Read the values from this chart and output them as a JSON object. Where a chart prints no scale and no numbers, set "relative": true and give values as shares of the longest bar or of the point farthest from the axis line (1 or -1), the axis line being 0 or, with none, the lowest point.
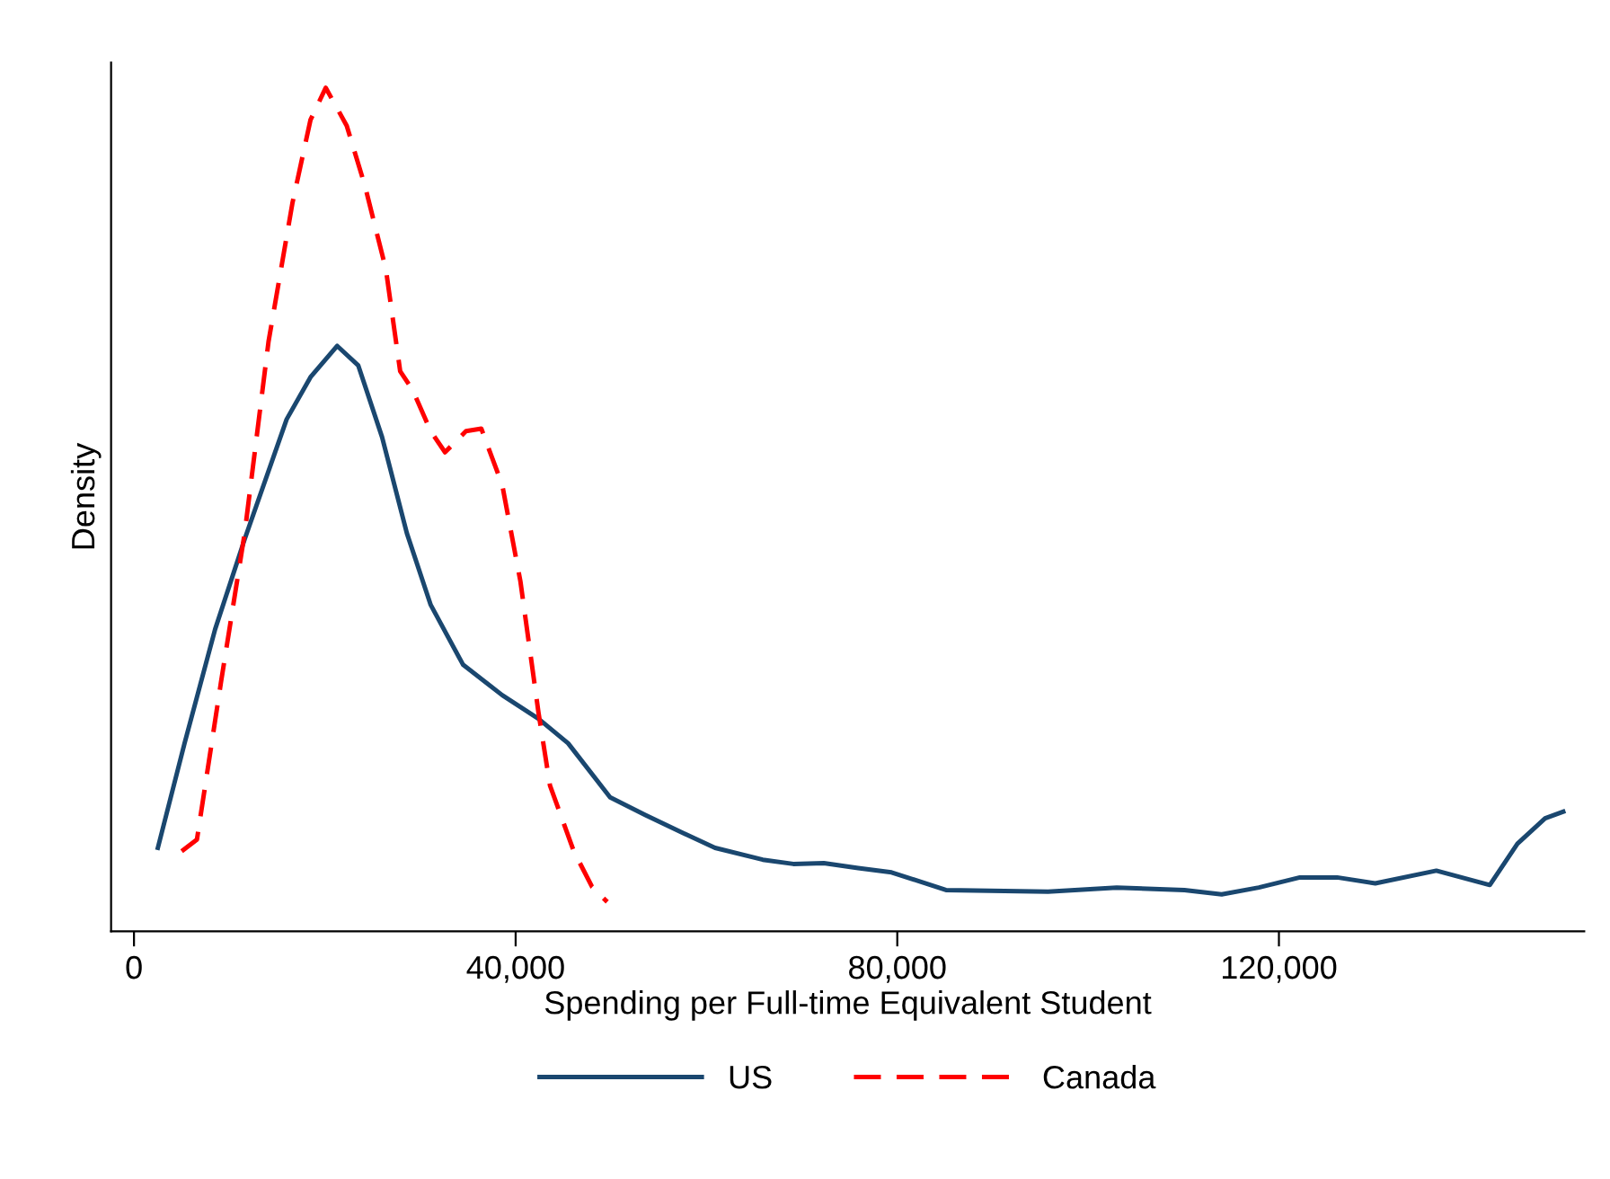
{
  "chart_data": {
    "type": "line",
    "relative": true,
    "xlabel": "Spending per Full-time Equivalent Student",
    "ylabel": "Density",
    "xlim": [
      -2400,
      152000
    ],
    "xticks": [
      0,
      {
        "value": 40000,
        "label": "40,000"
      },
      {
        "value": 80000,
        "label": "80,000"
      },
      {
        "value": 120000,
        "label": "120,000"
      }
    ],
    "grid": false,
    "legend": "bottom",
    "series": [
      {
        "name": "US",
        "color": "#1a476f",
        "line_style": "solid",
        "x": [
          2500,
          5300,
          8500,
          11600,
          16000,
          18500,
          21300,
          23500,
          26000,
          28600,
          31100,
          34500,
          38600,
          42400,
          45500,
          49900,
          53600,
          57300,
          60900,
          65900,
          69100,
          72300,
          75900,
          79400,
          85100,
          95800,
          103000,
          110100,
          114000,
          117900,
          122200,
          126100,
          130100,
          136500,
          142100,
          145000,
          147900,
          149800
        ],
        "values": [
          0.099,
          0.223,
          0.358,
          0.465,
          0.607,
          0.657,
          0.694,
          0.671,
          0.586,
          0.472,
          0.387,
          0.316,
          0.28,
          0.252,
          0.223,
          0.159,
          0.138,
          0.118,
          0.099,
          0.085,
          0.08,
          0.081,
          0.075,
          0.07,
          0.049,
          0.047,
          0.052,
          0.049,
          0.044,
          0.052,
          0.064,
          0.064,
          0.057,
          0.072,
          0.055,
          0.104,
          0.134,
          0.142
        ]
      },
      {
        "name": "Canada",
        "color": "#ff0000",
        "line_style": "dashed",
        "x": [
          5000,
          6600,
          9100,
          11600,
          14100,
          16600,
          18500,
          20100,
          22300,
          24200,
          26400,
          27900,
          29200,
          31100,
          32600,
          34800,
          36400,
          38600,
          40500,
          42400,
          43600,
          46100,
          48000,
          49600
        ],
        "values": [
          0.095,
          0.109,
          0.294,
          0.472,
          0.699,
          0.863,
          0.962,
          1.0,
          0.955,
          0.884,
          0.785,
          0.664,
          0.642,
          0.593,
          0.568,
          0.593,
          0.596,
          0.529,
          0.415,
          0.259,
          0.173,
          0.095,
          0.053,
          0.035
        ]
      }
    ]
  }
}
